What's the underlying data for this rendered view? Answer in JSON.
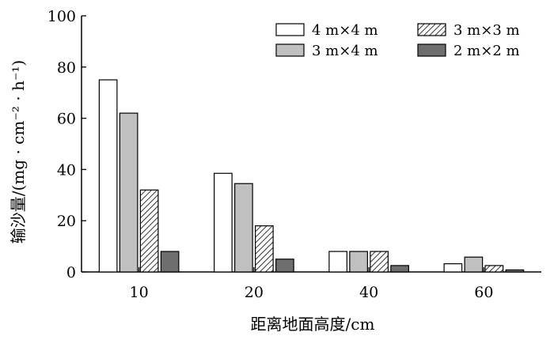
{
  "chart_data": {
    "type": "bar",
    "xlabel": "距离地面高度/cm",
    "ylabel": "输沙量/(mg · cm⁻² · h⁻¹)",
    "categories": [
      "10",
      "20",
      "40",
      "60"
    ],
    "ylim": [
      0,
      100
    ],
    "yticks": [
      0,
      20,
      40,
      60,
      80,
      100
    ],
    "legend_position": "top-right",
    "series": [
      {
        "name": "4 m×4 m",
        "values": [
          75,
          38.5,
          8,
          3.2
        ],
        "fill": "#ffffff",
        "pattern": "solid"
      },
      {
        "name": "3 m×4 m",
        "values": [
          62,
          34.5,
          8,
          5.8
        ],
        "fill": "#c0c0c0",
        "pattern": "solid"
      },
      {
        "name": "3 m×3 m",
        "values": [
          32,
          18,
          8,
          2.5
        ],
        "fill": "#ffffff",
        "pattern": "hatch"
      },
      {
        "name": "2 m×2 m",
        "values": [
          8,
          5,
          2.5,
          0.8
        ],
        "fill": "#6e6e6e",
        "pattern": "solid"
      }
    ]
  }
}
